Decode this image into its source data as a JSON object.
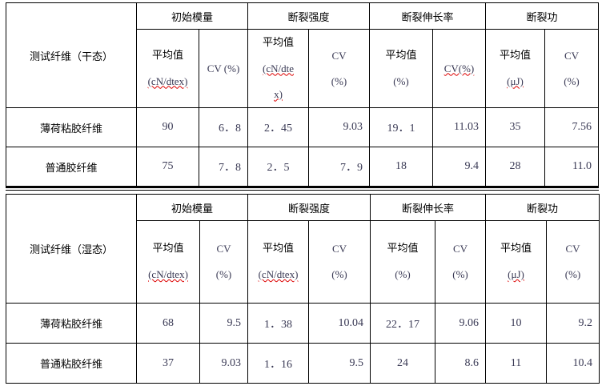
{
  "tables": [
    {
      "label": "测试纤维（干态）",
      "groups": [
        "初始模量",
        "断裂强度",
        "断裂伸长率",
        "断裂功"
      ],
      "subheaders": [
        [
          "平均值",
          "(cN/dtex)"
        ],
        [
          "CV (%)"
        ],
        [
          "平均值",
          "(cN/dte",
          "x)"
        ],
        [
          "CV",
          "(%)"
        ],
        [
          "平均值",
          "(%)"
        ],
        [
          "CV(%)"
        ],
        [
          "平均值",
          "(μJ)"
        ],
        [
          "CV",
          "(%)"
        ]
      ],
      "rows": [
        {
          "name": "薄荷粘胶纤维",
          "values": [
            "90",
            "6．8",
            "2．45",
            "9.03",
            "19．1",
            "11.03",
            "35",
            "7.56"
          ]
        },
        {
          "name": "普通胶纤维",
          "values": [
            "75",
            "7．8",
            "2．5",
            "7．9",
            "18",
            "9.4",
            "28",
            "11.0"
          ]
        }
      ]
    },
    {
      "label": "测试纤维（湿态）",
      "groups": [
        "初始模量",
        "断裂强度",
        "断裂伸长率",
        "断裂功"
      ],
      "subheaders": [
        [
          "平均值",
          "(cN/dtex)"
        ],
        [
          "CV",
          "(%)"
        ],
        [
          "平均值",
          "(cN/dtex)"
        ],
        [
          "CV",
          "(%)"
        ],
        [
          "平均值",
          "(%)"
        ],
        [
          "CV",
          "(%)"
        ],
        [
          "平均值",
          "(μJ)"
        ],
        [
          "CV",
          "(%)"
        ]
      ],
      "rows": [
        {
          "name": "薄荷粘胶纤维",
          "values": [
            "68",
            "9.5",
            "1．38",
            "10.04",
            "22．17",
            "9.06",
            "10",
            "9.2"
          ]
        },
        {
          "name": "普通粘胶纤维",
          "values": [
            "37",
            "9.03",
            "1．16",
            "9.5",
            "24",
            "8.6",
            "11",
            "10.4"
          ]
        }
      ]
    }
  ]
}
